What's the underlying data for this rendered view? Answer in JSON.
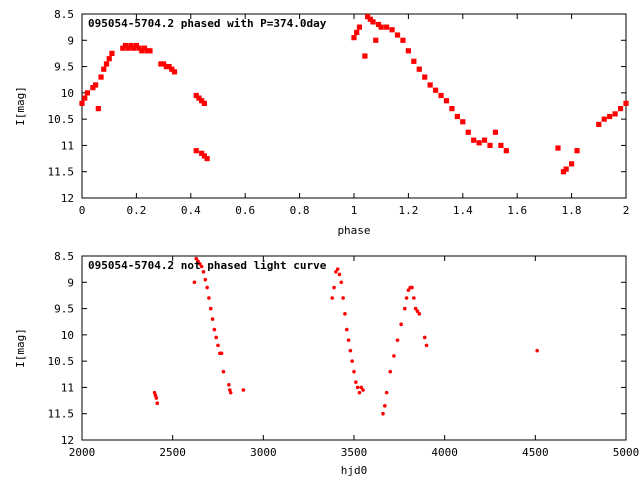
{
  "chart_data": [
    {
      "type": "scatter",
      "title": "095054-5704.2 phased with P=374.0day",
      "xlabel": "phase",
      "ylabel": "I[mag]",
      "xlim": [
        0,
        2
      ],
      "ylim": [
        12,
        8.5
      ],
      "y_inverted": true,
      "grid": false,
      "marker_color": "#ff0000",
      "xticks": [
        0,
        0.2,
        0.4,
        0.6,
        0.8,
        1,
        1.2,
        1.4,
        1.6,
        1.8,
        2
      ],
      "xtick_labels": [
        "0",
        "0.2",
        "0.4",
        "0.6",
        "0.8",
        "1",
        "1.2",
        "1.4",
        "1.6",
        "1.8",
        "2"
      ],
      "yticks": [
        8.5,
        9,
        9.5,
        10,
        10.5,
        11,
        11.5,
        12
      ],
      "ytick_labels": [
        "8.5",
        "9",
        "9.5",
        "10",
        "10.5",
        "11",
        "11.5",
        "12"
      ],
      "series": [
        {
          "x": [
            0.0,
            0.01,
            0.02,
            0.04,
            0.05,
            0.06,
            0.07,
            0.08,
            0.09,
            0.1,
            0.11,
            0.15,
            0.16,
            0.17,
            0.18,
            0.19,
            0.2,
            0.21,
            0.22,
            0.23,
            0.24,
            0.25,
            0.29,
            0.3,
            0.31,
            0.32,
            0.33,
            0.34,
            0.42,
            0.43,
            0.44,
            0.45,
            0.42,
            0.44,
            0.45,
            0.46,
            1.0,
            1.01,
            1.02,
            1.04,
            1.05,
            1.06,
            1.07,
            1.08,
            1.09,
            1.1,
            1.12,
            1.14,
            1.16,
            1.18,
            1.2,
            1.22,
            1.24,
            1.26,
            1.28,
            1.3,
            1.32,
            1.34,
            1.36,
            1.38,
            1.4,
            1.42,
            1.44,
            1.46,
            1.48,
            1.5,
            1.52,
            1.54,
            1.56,
            1.75,
            1.77,
            1.78,
            1.8,
            1.82,
            1.9,
            1.92,
            1.94,
            1.96,
            1.98,
            2.0
          ],
          "y": [
            10.2,
            10.1,
            10.0,
            9.9,
            9.85,
            10.3,
            9.7,
            9.55,
            9.45,
            9.35,
            9.25,
            9.15,
            9.1,
            9.15,
            9.1,
            9.15,
            9.1,
            9.15,
            9.2,
            9.15,
            9.2,
            9.2,
            9.45,
            9.45,
            9.5,
            9.5,
            9.55,
            9.6,
            10.05,
            10.1,
            10.15,
            10.2,
            11.1,
            11.15,
            11.2,
            11.25,
            8.95,
            8.85,
            8.75,
            9.3,
            8.55,
            8.6,
            8.65,
            9.0,
            8.7,
            8.75,
            8.75,
            8.8,
            8.9,
            9.0,
            9.2,
            9.4,
            9.55,
            9.7,
            9.85,
            9.95,
            10.05,
            10.15,
            10.3,
            10.45,
            10.55,
            10.75,
            10.9,
            10.95,
            10.9,
            11.0,
            10.75,
            11.0,
            11.1,
            11.05,
            11.5,
            11.45,
            11.35,
            11.1,
            10.6,
            10.5,
            10.45,
            10.4,
            10.3,
            10.2
          ]
        }
      ]
    },
    {
      "type": "scatter",
      "title": "095054-5704.2 not phased light curve",
      "xlabel": "hjd0",
      "ylabel": "I[mag]",
      "xlim": [
        2000,
        5000
      ],
      "ylim": [
        12,
        8.5
      ],
      "y_inverted": true,
      "grid": false,
      "marker_color": "#ff0000",
      "xticks": [
        2000,
        2500,
        3000,
        3500,
        4000,
        4500,
        5000
      ],
      "xtick_labels": [
        "2000",
        "2500",
        "3000",
        "3500",
        "4000",
        "4500",
        "5000"
      ],
      "yticks": [
        8.5,
        9,
        9.5,
        10,
        10.5,
        11,
        11.5,
        12
      ],
      "ytick_labels": [
        "8.5",
        "9",
        "9.5",
        "10",
        "10.5",
        "11",
        "11.5",
        "12"
      ],
      "series": [
        {
          "x": [
            2400,
            2405,
            2410,
            2415,
            2620,
            2630,
            2640,
            2650,
            2660,
            2670,
            2680,
            2690,
            2700,
            2710,
            2720,
            2730,
            2740,
            2750,
            2760,
            2770,
            2780,
            2810,
            2815,
            2820,
            2890,
            3380,
            3390,
            3400,
            3410,
            3420,
            3430,
            3440,
            3450,
            3460,
            3470,
            3480,
            3490,
            3500,
            3510,
            3520,
            3530,
            3540,
            3550,
            3660,
            3670,
            3680,
            3700,
            3720,
            3740,
            3760,
            3780,
            3790,
            3800,
            3810,
            3820,
            3830,
            3840,
            3850,
            3860,
            3890,
            3900,
            4510
          ],
          "y": [
            11.1,
            11.15,
            11.2,
            11.3,
            9.0,
            8.55,
            8.6,
            8.65,
            8.7,
            8.8,
            8.95,
            9.1,
            9.3,
            9.5,
            9.7,
            9.9,
            10.05,
            10.2,
            10.35,
            10.35,
            10.7,
            10.95,
            11.05,
            11.1,
            11.05,
            9.3,
            9.1,
            8.8,
            8.75,
            8.85,
            9.0,
            9.3,
            9.6,
            9.9,
            10.1,
            10.3,
            10.5,
            10.7,
            10.9,
            11.0,
            11.1,
            11.0,
            11.05,
            11.5,
            11.35,
            11.1,
            10.7,
            10.4,
            10.1,
            9.8,
            9.5,
            9.3,
            9.15,
            9.1,
            9.1,
            9.3,
            9.5,
            9.55,
            9.6,
            10.05,
            10.2,
            10.3
          ]
        }
      ]
    }
  ]
}
